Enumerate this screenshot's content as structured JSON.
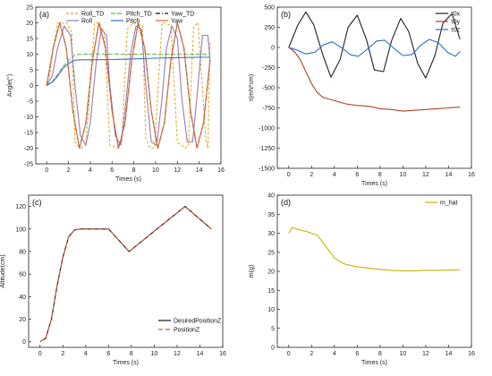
{
  "chart_data": [
    {
      "panel": "(a)",
      "type": "line",
      "xlabel": "Times (s)",
      "ylabel": "Angle(°)",
      "xlim": [
        -1,
        16
      ],
      "ylim": [
        -25,
        25
      ],
      "xticks": [
        0,
        2,
        4,
        6,
        8,
        10,
        12,
        14,
        16
      ],
      "yticks": [
        -25,
        -20,
        -15,
        -10,
        -5,
        0,
        5,
        10,
        15,
        20,
        25
      ],
      "legend": "top",
      "grid": false,
      "series": [
        {
          "name": "Roll_TD",
          "color": "#e0b030",
          "dash": "3,2",
          "x": [
            0,
            0.3,
            0.6,
            1.0,
            1.8,
            2.3,
            2.6,
            3.1,
            3.6,
            4.4,
            4.8,
            5.3,
            5.8,
            6.5,
            6.9,
            7.4,
            8.0,
            8.8,
            9.1,
            9.5,
            9.9,
            10.6,
            10.9,
            11.4,
            12.0,
            12.7,
            13.0,
            13.5,
            13.9,
            14.6,
            14.8,
            15.0
          ],
          "y": [
            0,
            4,
            12,
            20,
            20,
            17,
            -18,
            -20,
            -19,
            20,
            20,
            17,
            -19,
            -20,
            -18,
            18,
            20,
            19,
            -17,
            -20,
            -20,
            20,
            20,
            19,
            -18,
            -20,
            -19,
            19,
            20,
            -17,
            -20,
            14
          ]
        },
        {
          "name": "Roll",
          "color": "#9a7bb5",
          "dash": "",
          "x": [
            0,
            0.5,
            1.0,
            1.6,
            2.2,
            2.6,
            3.1,
            3.6,
            4.0,
            4.5,
            5.0,
            5.5,
            5.8,
            6.3,
            6.8,
            7.2,
            7.7,
            8.2,
            8.7,
            9.1,
            9.6,
            10.1,
            10.6,
            11.0,
            11.5,
            12.0,
            12.4,
            12.9,
            13.4,
            13.9,
            14.3,
            14.8,
            15.0
          ],
          "y": [
            0,
            3,
            12,
            19,
            16,
            0,
            -16,
            -19,
            -12,
            6,
            18,
            16,
            0,
            -16,
            -19,
            -8,
            10,
            19,
            18,
            0,
            -18,
            -19,
            -4,
            12,
            19,
            15,
            -4,
            -18,
            -18,
            0,
            16,
            16,
            8
          ]
        },
        {
          "name": "Pitch_TD",
          "color": "#5fb35a",
          "dash": "5,2",
          "x": [
            0,
            0.5,
            1,
            1.5,
            2,
            2.5,
            3,
            4,
            6,
            8,
            10,
            12,
            14,
            15
          ],
          "y": [
            0,
            1.2,
            3.5,
            6,
            8,
            9.5,
            10,
            10,
            10,
            10,
            10,
            10,
            10,
            10
          ]
        },
        {
          "name": "Pitch",
          "color": "#3a6fc4",
          "dash": "",
          "x": [
            0,
            0.5,
            1,
            1.5,
            2,
            2.5,
            3,
            4,
            6,
            8,
            10,
            12,
            14,
            15
          ],
          "y": [
            0,
            1,
            3,
            5.5,
            7,
            8,
            8.2,
            8.2,
            8.3,
            8.5,
            8.7,
            8.9,
            9,
            9
          ]
        },
        {
          "name": "Yaw_TD",
          "color": "#111111",
          "dash": "5,2,1,2",
          "x": [
            0,
            0.6,
            1.2,
            1.8,
            2.4,
            3.0,
            3.6,
            4.2,
            4.8,
            5.4,
            6.0,
            6.6,
            7.2,
            7.8,
            8.4,
            9.0,
            9.6,
            10.2,
            10.8,
            11.4,
            12.0,
            12.6,
            13.2,
            13.8,
            14.4,
            15.0
          ],
          "y": [
            0,
            12,
            20,
            12,
            -8,
            -20,
            -12,
            8,
            20,
            12,
            -8,
            -20,
            -12,
            8,
            20,
            12,
            -8,
            -20,
            -12,
            8,
            20,
            12,
            -8,
            -20,
            -12,
            8
          ]
        },
        {
          "name": "Yaw",
          "color": "#cf6a3a",
          "dash": "",
          "x": [
            0,
            0.6,
            1.2,
            1.8,
            2.4,
            3.0,
            3.6,
            4.2,
            4.8,
            5.4,
            6.0,
            6.6,
            7.2,
            7.8,
            8.4,
            9.0,
            9.6,
            10.2,
            10.8,
            11.4,
            12.0,
            12.6,
            13.2,
            13.8,
            14.4,
            15.0
          ],
          "y": [
            0,
            12,
            20,
            12,
            -8,
            -20,
            -12,
            8,
            20,
            12,
            -8,
            -20,
            -12,
            8,
            20,
            12,
            -8,
            -20,
            -12,
            8,
            20,
            12,
            -8,
            -20,
            -12,
            8
          ]
        }
      ]
    },
    {
      "panel": "(b)",
      "type": "line",
      "xlabel": "Times (s)",
      "ylabel": "τ(mN*cm)",
      "xlim": [
        -1,
        16
      ],
      "ylim": [
        -1500,
        500
      ],
      "xticks": [
        0,
        2,
        4,
        6,
        8,
        10,
        12,
        14,
        16
      ],
      "yticks": [
        -1500,
        -1250,
        -1000,
        -750,
        -500,
        -250,
        0,
        250,
        500
      ],
      "legend": "top-right",
      "grid": false,
      "series": [
        {
          "name": "τ0x",
          "color": "#222222",
          "x": [
            0,
            0.8,
            1.5,
            2.2,
            3.0,
            3.7,
            4.5,
            5.2,
            6.0,
            6.8,
            7.5,
            8.3,
            9.0,
            9.8,
            10.5,
            11.3,
            12.0,
            12.8,
            13.5,
            14.3,
            15.0
          ],
          "y": [
            0,
            280,
            440,
            280,
            -100,
            -370,
            -150,
            250,
            400,
            100,
            -280,
            -300,
            80,
            360,
            200,
            -200,
            -380,
            -100,
            300,
            420,
            100
          ]
        },
        {
          "name": "τ0y",
          "color": "#b0442a",
          "x": [
            0,
            0.5,
            1,
            1.5,
            2,
            2.5,
            3,
            3.5,
            4,
            5,
            6,
            7,
            8,
            9,
            10,
            11,
            12,
            13,
            14,
            15
          ],
          "y": [
            0,
            -50,
            -150,
            -300,
            -450,
            -560,
            -620,
            -640,
            -660,
            -700,
            -720,
            -730,
            -760,
            -770,
            -790,
            -780,
            -770,
            -760,
            -750,
            -740
          ]
        },
        {
          "name": "τ0z",
          "color": "#2a6fd0",
          "x": [
            0,
            0.7,
            1.5,
            2.3,
            3.0,
            3.8,
            4.6,
            5.4,
            6.1,
            6.9,
            7.7,
            8.4,
            9.2,
            10.0,
            10.8,
            11.5,
            12.3,
            13.1,
            13.9,
            14.6,
            15.0
          ],
          "y": [
            0,
            -30,
            -80,
            -60,
            30,
            70,
            0,
            -90,
            -110,
            -20,
            80,
            90,
            -10,
            -100,
            -90,
            20,
            100,
            60,
            -60,
            -110,
            -50
          ]
        }
      ]
    },
    {
      "panel": "(c)",
      "type": "line",
      "xlabel": "Times (s)",
      "ylabel": "Altitude(cm)",
      "xlim": [
        -1,
        16
      ],
      "ylim": [
        -5,
        130
      ],
      "xticks": [
        0,
        2,
        4,
        6,
        8,
        10,
        12,
        14,
        16
      ],
      "yticks": [
        0,
        20,
        40,
        60,
        80,
        100,
        120
      ],
      "legend": "bottom-right",
      "grid": false,
      "series": [
        {
          "name": "DesiredPositionZ",
          "color": "#111111",
          "dash": "",
          "x": [
            0,
            0.5,
            1,
            1.5,
            2,
            2.5,
            3,
            3.5,
            4,
            5,
            6,
            7.8,
            10,
            12.7,
            15
          ],
          "y": [
            0,
            3,
            20,
            50,
            75,
            93,
            99,
            100,
            100,
            100,
            100,
            80,
            98,
            120,
            100
          ]
        },
        {
          "name": "PositionZ",
          "color": "#d2553a",
          "dash": "5,3",
          "x": [
            0,
            0.5,
            1,
            1.5,
            2,
            2.5,
            3,
            3.5,
            4,
            5,
            6,
            7.8,
            10,
            12.7,
            15
          ],
          "y": [
            0,
            3,
            20,
            50,
            75,
            93,
            99,
            100,
            100,
            100,
            100,
            80,
            98,
            120,
            100
          ]
        }
      ]
    },
    {
      "panel": "(d)",
      "type": "line",
      "xlabel": "Times (s)",
      "ylabel": "m(g)",
      "xlim": [
        -1,
        16
      ],
      "ylim": [
        0,
        40
      ],
      "xticks": [
        0,
        2,
        4,
        6,
        8,
        10,
        12,
        14,
        16
      ],
      "yticks": [
        0,
        5,
        10,
        15,
        20,
        25,
        30,
        35,
        40
      ],
      "legend": "top-right",
      "grid": false,
      "series": [
        {
          "name": "m_hat",
          "color": "#c8b400",
          "dash": "",
          "x": [
            0,
            0.3,
            0.8,
            1.5,
            2.5,
            3,
            3.5,
            4,
            4.5,
            5,
            6,
            7,
            8,
            9,
            10,
            11,
            12,
            13,
            14,
            15
          ],
          "y": [
            30,
            31.5,
            31,
            30.5,
            29.5,
            27.5,
            25.5,
            23.5,
            22.5,
            21.8,
            21.2,
            20.8,
            20.5,
            20.2,
            20.1,
            20.1,
            20.2,
            20.2,
            20.3,
            20.4
          ]
        }
      ]
    }
  ]
}
